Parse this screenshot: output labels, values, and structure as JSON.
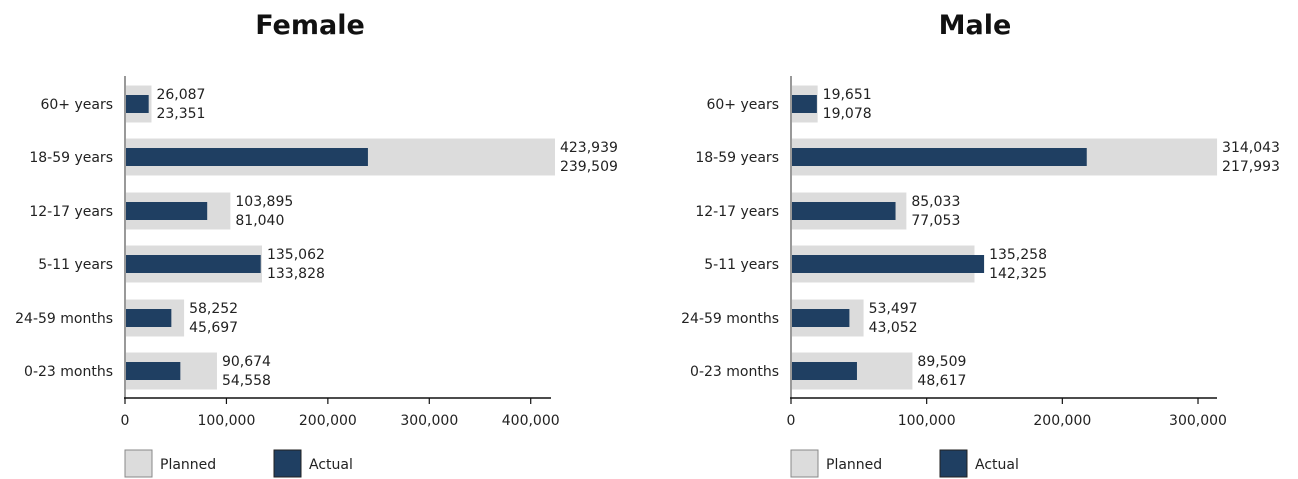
{
  "chart_data": [
    {
      "type": "bar",
      "title": "Female",
      "categories": [
        "60+ years",
        "18-59 years",
        "12-17 years",
        "5-11 years",
        "24-59 months",
        "0-23 months"
      ],
      "series": [
        {
          "name": "Planned",
          "values": [
            26087,
            423939,
            103895,
            135062,
            58252,
            90674
          ],
          "labels": [
            "26,087",
            "423,939",
            "103,895",
            "135,062",
            "58,252",
            "90,674"
          ]
        },
        {
          "name": "Actual",
          "values": [
            23351,
            239509,
            81040,
            133828,
            45697,
            54558
          ],
          "labels": [
            "23,351",
            "239,509",
            "81,040",
            "133,828",
            "45,697",
            "54,558"
          ]
        }
      ],
      "xlim": [
        0,
        420000
      ],
      "xticks": [
        0,
        100000,
        200000,
        300000,
        400000
      ],
      "xtick_labels": [
        "0",
        "100,000",
        "200,000",
        "300,000",
        "400,000"
      ],
      "orientation": "horizontal",
      "legend": "bottom-left"
    },
    {
      "type": "bar",
      "title": "Male",
      "categories": [
        "60+ years",
        "18-59 years",
        "12-17 years",
        "5-11 years",
        "24-59 months",
        "0-23 months"
      ],
      "series": [
        {
          "name": "Planned",
          "values": [
            19651,
            314043,
            85033,
            135258,
            53497,
            89509
          ],
          "labels": [
            "19,651",
            "314,043",
            "85,033",
            "135,258",
            "53,497",
            "89,509"
          ]
        },
        {
          "name": "Actual",
          "values": [
            19078,
            217993,
            77053,
            142325,
            43052,
            48617
          ],
          "labels": [
            "19,078",
            "217,993",
            "77,053",
            "142,325",
            "43,052",
            "48,617"
          ]
        }
      ],
      "xlim": [
        0,
        314000
      ],
      "xticks": [
        0,
        100000,
        200000,
        300000
      ],
      "xtick_labels": [
        "0",
        "100,000",
        "200,000",
        "300,000"
      ],
      "orientation": "horizontal",
      "legend": "bottom-left"
    }
  ],
  "colors": {
    "planned": "#dcdcdc",
    "actual": "#1f3f62",
    "axis": "#999999"
  }
}
